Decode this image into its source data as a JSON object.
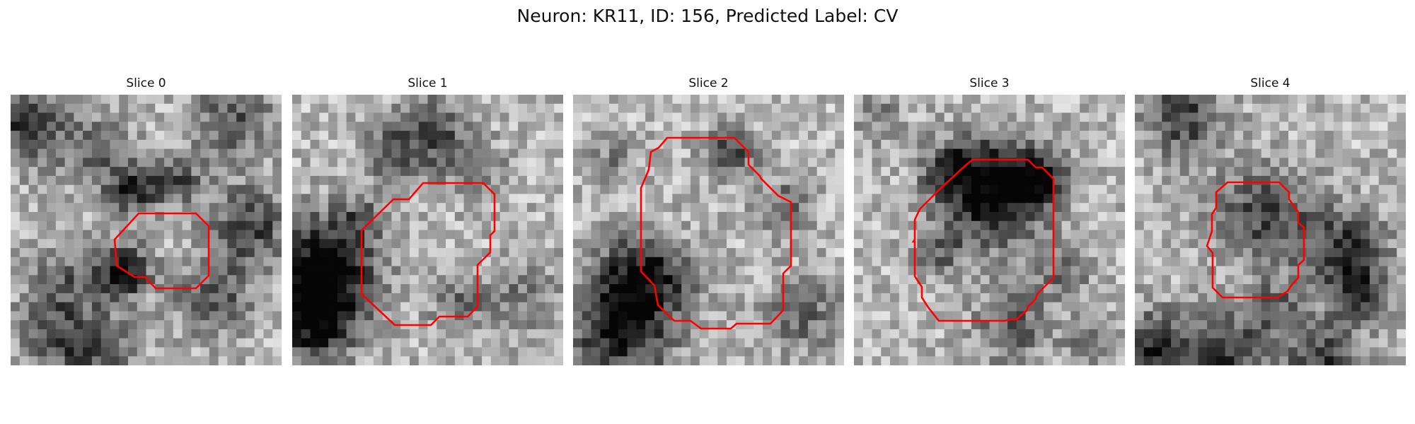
{
  "figure": {
    "title": "Neuron: KR11, ID: 156, Predicted Label: CV",
    "contour_color": "#ff0000"
  },
  "panels": [
    {
      "title": "Slice 0"
    },
    {
      "title": "Slice 1"
    },
    {
      "title": "Slice 2"
    },
    {
      "title": "Slice 3"
    },
    {
      "title": "Slice 4"
    }
  ]
}
